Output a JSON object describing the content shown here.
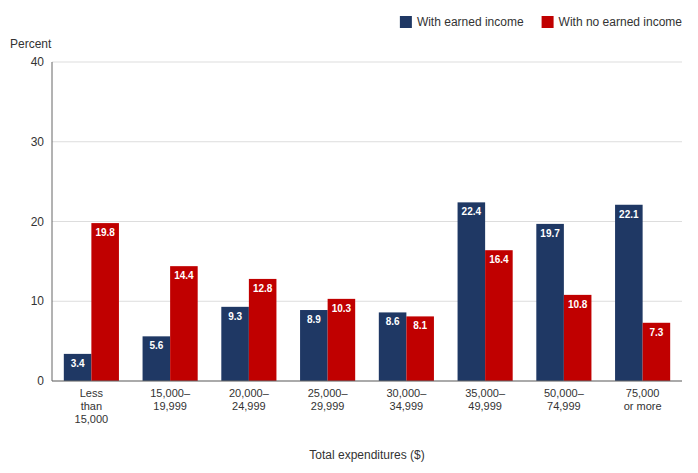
{
  "chart_data": {
    "type": "bar",
    "categories": [
      "Less\nthan\n15,000",
      "15,000–\n19,999",
      "20,000–\n24,999",
      "25,000–\n29,999",
      "30,000–\n34,999",
      "35,000–\n49,999",
      "50,000–\n74,999",
      "75,000\nor more"
    ],
    "series": [
      {
        "name": "With earned income",
        "color": "#1f3864",
        "values": [
          3.4,
          5.6,
          9.3,
          8.9,
          8.6,
          22.4,
          19.7,
          22.1
        ]
      },
      {
        "name": "With no earned income",
        "color": "#c00000",
        "values": [
          19.8,
          14.4,
          12.8,
          10.3,
          8.1,
          16.4,
          10.8,
          7.3
        ]
      }
    ],
    "xlabel": "Total expenditures ($)",
    "ylabel": "Percent",
    "ylim": [
      0,
      40
    ],
    "yticks": [
      0,
      10,
      20,
      30,
      40
    ],
    "grid": true,
    "legend": "upper right",
    "data_labels": true
  }
}
